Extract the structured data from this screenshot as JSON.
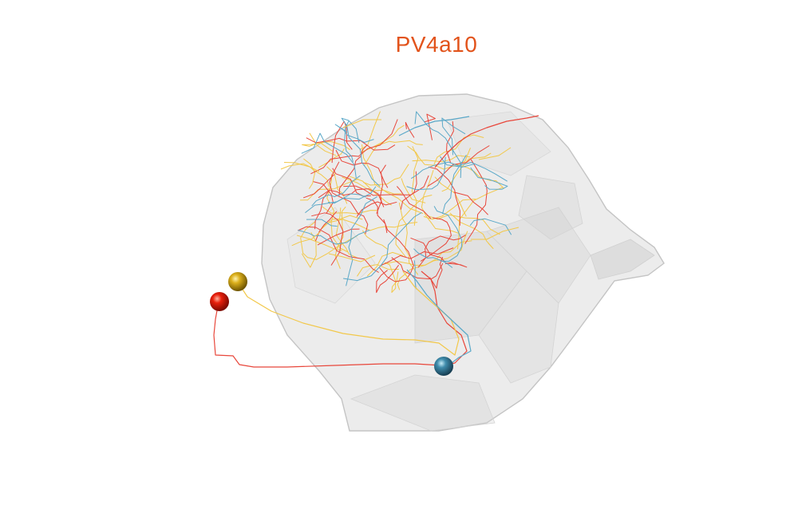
{
  "title": "PV4a10",
  "colors": {
    "title": "#e2531b",
    "neuron_red": "#e23a2a",
    "neuron_yellow": "#f0c43a",
    "neuron_blue": "#4b9bbd",
    "volume_fill": "#d8d8d8",
    "volume_edge": "#c8c8c8"
  },
  "neurons": [
    {
      "name": "red",
      "soma_color": "#e31a0c"
    },
    {
      "name": "yellow",
      "soma_color": "#e0b520"
    },
    {
      "name": "blue",
      "soma_color": "#3f8cac"
    }
  ]
}
